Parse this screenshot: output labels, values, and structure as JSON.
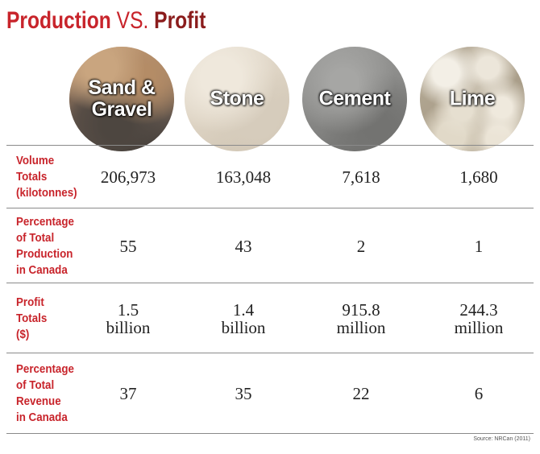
{
  "title": {
    "part1": "Production",
    "part2": "VS.",
    "part3": "Profit",
    "color": "#c8242b",
    "accent_dark": "#8b1c1c"
  },
  "materials": [
    {
      "id": "sand-gravel",
      "label": "Sand &\nGravel",
      "texture": "sand and gravel photo"
    },
    {
      "id": "stone",
      "label": "Stone",
      "texture": "stone photo"
    },
    {
      "id": "cement",
      "label": "Cement",
      "texture": "cement powder photo"
    },
    {
      "id": "lime",
      "label": "Lime",
      "texture": "lime rocks photo"
    }
  ],
  "rows": [
    {
      "header": [
        "Volume",
        "Totals",
        "(kilotonnes)"
      ],
      "values": [
        [
          "206,973"
        ],
        [
          "163,048"
        ],
        [
          "7,618"
        ],
        [
          "1,680"
        ]
      ]
    },
    {
      "header": [
        "Percentage",
        "of Total",
        "Production",
        "in Canada"
      ],
      "values": [
        [
          "55"
        ],
        [
          "43"
        ],
        [
          "2"
        ],
        [
          "1"
        ]
      ]
    },
    {
      "header": [
        "Profit",
        "Totals",
        "($)"
      ],
      "values": [
        [
          "1.5",
          "billion"
        ],
        [
          "1.4",
          "billion"
        ],
        [
          "915.8",
          "million"
        ],
        [
          "244.3",
          "million"
        ]
      ]
    },
    {
      "header": [
        "Percentage",
        "of Total",
        "Revenue",
        "in Canada"
      ],
      "values": [
        [
          "37"
        ],
        [
          "35"
        ],
        [
          "22"
        ],
        [
          "6"
        ]
      ]
    }
  ],
  "source": "Source: NRCan (2011)"
}
